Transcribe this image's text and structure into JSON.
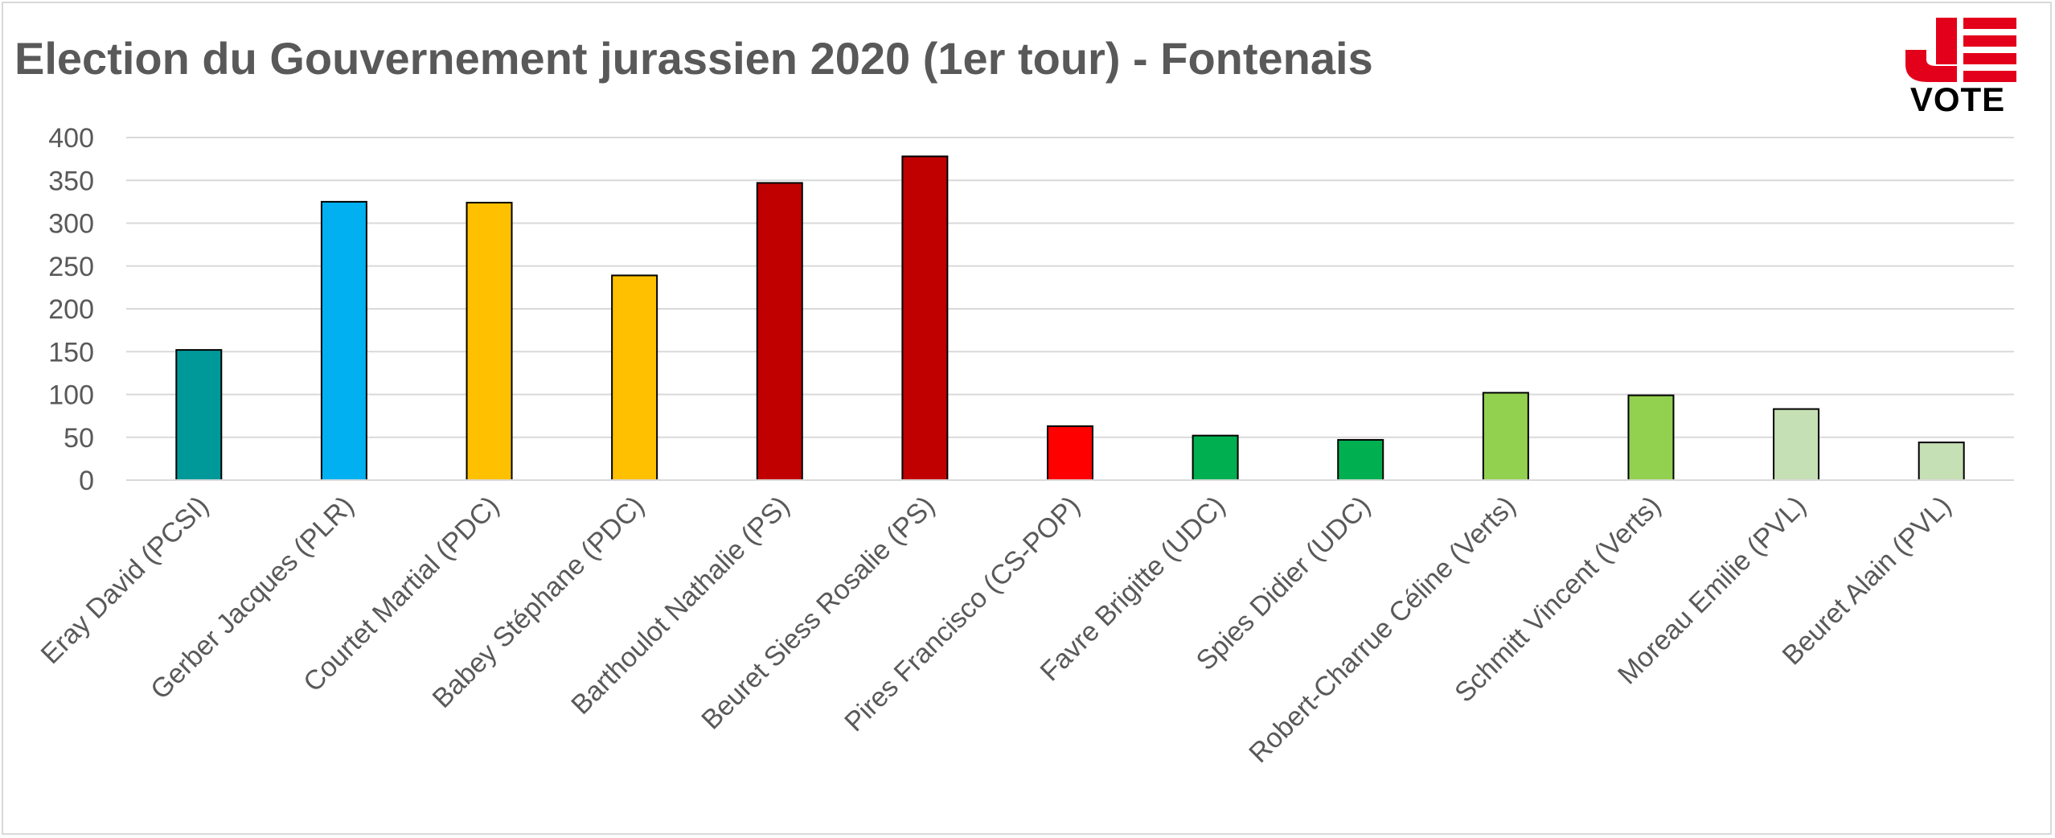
{
  "chart_data": {
    "type": "bar",
    "title": "Election du Gouvernement jurassien 2020 (1er tour) - Fontenais",
    "xlabel": "",
    "ylabel": "",
    "ylim": [
      0,
      400
    ],
    "yticks": [
      0,
      50,
      100,
      150,
      200,
      250,
      300,
      350,
      400
    ],
    "grid": true,
    "legend": "none",
    "categories": [
      "Eray David (PCSI)",
      "Gerber Jacques (PLR)",
      "Courtet Martial (PDC)",
      "Babey Stéphane (PDC)",
      "Barthoulot Nathalie (PS)",
      "Beuret Siess Rosalie (PS)",
      "Pires Francisco (CS-POP)",
      "Favre Brigitte (UDC)",
      "Spies Didier (UDC)",
      "Robert-Charrue Céline (Verts)",
      "Schmitt Vincent (Verts)",
      "Moreau Emilie (PVL)",
      "Beuret Alain (PVL)"
    ],
    "values": [
      152,
      325,
      324,
      239,
      347,
      378,
      63,
      52,
      47,
      102,
      99,
      83,
      44
    ],
    "bar_colors": [
      "#00999A",
      "#00B0F0",
      "#FFC000",
      "#FFC000",
      "#C00000",
      "#C00000",
      "#FF0000",
      "#00B050",
      "#00B050",
      "#92D050",
      "#92D050",
      "#C5E0B4",
      "#C5E0B4"
    ]
  },
  "logo": {
    "mark": "JE",
    "text": "VOTE",
    "accent_color": "#E3001B"
  },
  "colors": {
    "text": "#595959",
    "grid": "#d9d9d9",
    "bar_outline": "#000000"
  }
}
